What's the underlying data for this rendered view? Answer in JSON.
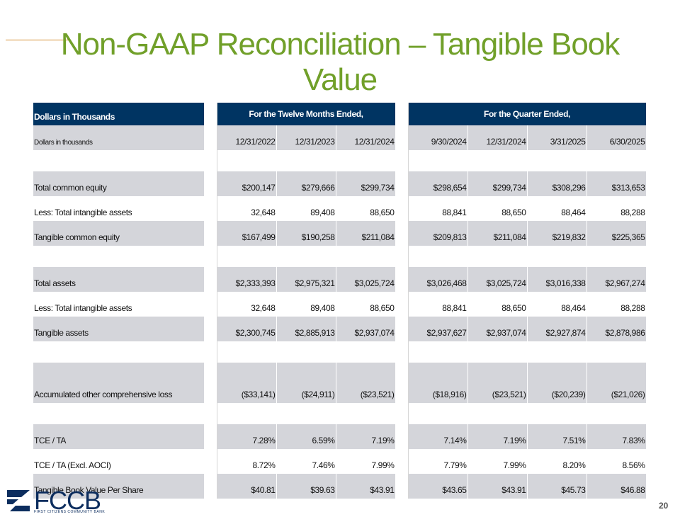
{
  "slide": {
    "title": "Non-GAAP Reconciliation – Tangible Book Value",
    "page_number": "20"
  },
  "table": {
    "header_label": "Dollars in Thousands",
    "group_twelve_months": "For the Twelve Months Ended,",
    "group_quarter": "For the Quarter Ended,",
    "date_label": "Dollars in thousands",
    "dates_twelve": [
      "12/31/2022",
      "12/31/2023",
      "12/31/2024"
    ],
    "dates_quarter": [
      "9/30/2024",
      "12/31/2024",
      "3/31/2025",
      "6/30/2025"
    ],
    "rows": [
      {
        "label": "Total common equity",
        "values": [
          "$200,147",
          "$279,666",
          "$299,734",
          "$298,654",
          "$299,734",
          "$308,296",
          "$313,653"
        ]
      },
      {
        "label": "Less: Total intangible assets",
        "values": [
          "32,648",
          "89,408",
          "88,650",
          "88,841",
          "88,650",
          "88,464",
          "88,288"
        ]
      },
      {
        "label": "Tangible common equity",
        "values": [
          "$167,499",
          "$190,258",
          "$211,084",
          "$209,813",
          "$211,084",
          "$219,832",
          "$225,365"
        ]
      },
      {
        "label": "Total assets",
        "values": [
          "$2,333,393",
          "$2,975,321",
          "$3,025,724",
          "$3,026,468",
          "$3,025,724",
          "$3,016,338",
          "$2,967,274"
        ]
      },
      {
        "label": "Less: Total intangible assets",
        "values": [
          "32,648",
          "89,408",
          "88,650",
          "88,841",
          "88,650",
          "88,464",
          "88,288"
        ]
      },
      {
        "label": "Tangible assets",
        "values": [
          "$2,300,745",
          "$2,885,913",
          "$2,937,074",
          "$2,937,627",
          "$2,937,074",
          "$2,927,874",
          "$2,878,986"
        ]
      },
      {
        "label": "Accumulated other comprehensive loss",
        "values": [
          "($33,141)",
          "($24,911)",
          "($23,521)",
          "($18,916)",
          "($23,521)",
          "($20,239)",
          "($21,026)"
        ]
      },
      {
        "label": "TCE / TA",
        "values": [
          "7.28%",
          "6.59%",
          "7.19%",
          "7.14%",
          "7.19%",
          "7.51%",
          "7.83%"
        ]
      },
      {
        "label": "TCE / TA (Excl. AOCI)",
        "values": [
          "8.72%",
          "7.46%",
          "7.99%",
          "7.79%",
          "7.99%",
          "8.20%",
          "8.56%"
        ]
      },
      {
        "label": "Tangible Book Value Per Share",
        "values": [
          "$40.81",
          "$39.63",
          "$43.91",
          "$43.65",
          "$43.91",
          "$45.73",
          "$46.88"
        ]
      }
    ]
  },
  "logo": {
    "text": "FCCB",
    "subtext": "FIRST CITIZENS COMMUNITY BANK"
  },
  "colors": {
    "title": "#71a02a",
    "header_bg": "#003462",
    "row_gray": "#d4d5da",
    "accent_rule": "#d58f2e",
    "logo": "#0c2d5e"
  }
}
